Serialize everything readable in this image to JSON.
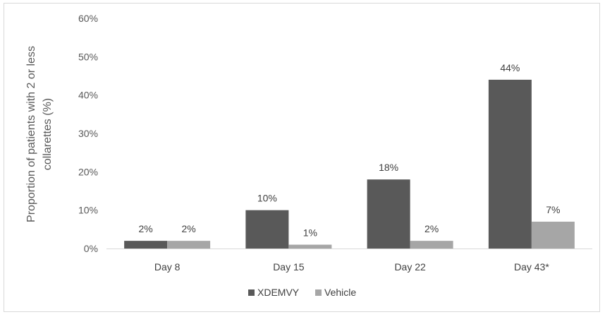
{
  "chart_data": {
    "type": "bar",
    "categories": [
      "Day 8",
      "Day 15",
      "Day 22",
      "Day 43*"
    ],
    "series": [
      {
        "name": "XDEMVY",
        "values": [
          2,
          10,
          18,
          44
        ],
        "labels": [
          "2%",
          "10%",
          "18%",
          "44%"
        ],
        "color": "#595959"
      },
      {
        "name": "Vehicle",
        "values": [
          2,
          1,
          2,
          7
        ],
        "labels": [
          "2%",
          "1%",
          "2%",
          "7%"
        ],
        "color": "#a6a6a6"
      }
    ],
    "title": "",
    "xlabel": "",
    "ylabel_lines": [
      "Proportion of patients with 2 or less",
      "collarettes  (%)"
    ],
    "ylim": [
      0,
      60
    ],
    "yticks": [
      0,
      10,
      20,
      30,
      40,
      50,
      60
    ],
    "ytick_labels": [
      "0%",
      "10%",
      "20%",
      "30%",
      "40%",
      "50%",
      "60%"
    ],
    "grid": false,
    "legend_position": "bottom"
  }
}
